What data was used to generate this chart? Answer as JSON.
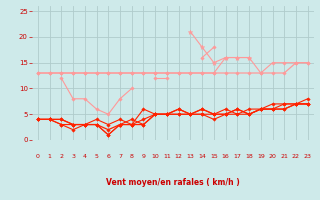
{
  "x": [
    0,
    1,
    2,
    3,
    4,
    5,
    6,
    7,
    8,
    9,
    10,
    11,
    12,
    13,
    14,
    15,
    16,
    17,
    18,
    19,
    20,
    21,
    22,
    23
  ],
  "lines": [
    {
      "y": [
        13,
        13,
        13,
        13,
        13,
        13,
        13,
        13,
        13,
        13,
        13,
        13,
        13,
        13,
        13,
        13,
        13,
        13,
        13,
        13,
        13,
        13,
        15,
        15
      ],
      "color": "#ff9999",
      "lw": 0.9,
      "marker": "D",
      "ms": 1.8
    },
    {
      "y": [
        13,
        13,
        13,
        13,
        13,
        13,
        13,
        13,
        13,
        13,
        13,
        13,
        13,
        13,
        13,
        13,
        16,
        16,
        16,
        13,
        15,
        15,
        15,
        15
      ],
      "color": "#ff9999",
      "lw": 0.8,
      "marker": "D",
      "ms": 1.8
    },
    {
      "y": [
        null,
        null,
        12,
        8,
        8,
        6,
        5,
        8,
        10,
        null,
        12,
        12,
        null,
        null,
        16,
        18,
        null,
        null,
        null,
        null,
        null,
        null,
        null,
        null
      ],
      "color": "#ff9999",
      "lw": 0.8,
      "marker": "D",
      "ms": 1.8
    },
    {
      "y": [
        null,
        null,
        null,
        null,
        null,
        null,
        null,
        3,
        null,
        null,
        null,
        null,
        null,
        21,
        18,
        15,
        16,
        16,
        16,
        null,
        null,
        null,
        null,
        null
      ],
      "color": "#ff9999",
      "lw": 0.8,
      "marker": "*",
      "ms": 3.5
    },
    {
      "y": [
        4,
        4,
        4,
        3,
        3,
        3,
        2,
        3,
        3,
        3,
        5,
        5,
        6,
        5,
        6,
        5,
        5,
        6,
        5,
        6,
        6,
        6,
        7,
        7
      ],
      "color": "#ff2200",
      "lw": 0.9,
      "marker": "D",
      "ms": 1.8
    },
    {
      "y": [
        4,
        4,
        4,
        3,
        3,
        3,
        1,
        3,
        3,
        4,
        5,
        5,
        6,
        5,
        6,
        5,
        5,
        6,
        5,
        6,
        6,
        6,
        7,
        7
      ],
      "color": "#ff2200",
      "lw": 0.8,
      "marker": "D",
      "ms": 1.8
    },
    {
      "y": [
        4,
        4,
        3,
        3,
        3,
        4,
        3,
        4,
        3,
        6,
        5,
        5,
        5,
        5,
        5,
        5,
        6,
        5,
        6,
        6,
        7,
        7,
        7,
        8
      ],
      "color": "#ff2200",
      "lw": 0.8,
      "marker": "D",
      "ms": 1.8
    },
    {
      "y": [
        4,
        4,
        3,
        2,
        3,
        3,
        1,
        3,
        4,
        3,
        5,
        5,
        5,
        5,
        5,
        4,
        5,
        5,
        5,
        6,
        6,
        7,
        7,
        7
      ],
      "color": "#ff2200",
      "lw": 0.8,
      "marker": "D",
      "ms": 1.8
    }
  ],
  "xlabel": "Vent moyen/en rafales ( km/h )",
  "xlim": [
    -0.5,
    23.5
  ],
  "ylim": [
    0,
    26
  ],
  "yticks": [
    0,
    5,
    10,
    15,
    20,
    25
  ],
  "xticks": [
    0,
    1,
    2,
    3,
    4,
    5,
    6,
    7,
    8,
    9,
    10,
    11,
    12,
    13,
    14,
    15,
    16,
    17,
    18,
    19,
    20,
    21,
    22,
    23
  ],
  "background_color": "#ceeaea",
  "grid_color": "#b0cccc",
  "text_color": "#cc0000",
  "arrow_angles": [
    180,
    225,
    180,
    225,
    225,
    270,
    315,
    315,
    270,
    270,
    270,
    270,
    270,
    270,
    270,
    315,
    270,
    270,
    270,
    315,
    270,
    270,
    270,
    270
  ]
}
